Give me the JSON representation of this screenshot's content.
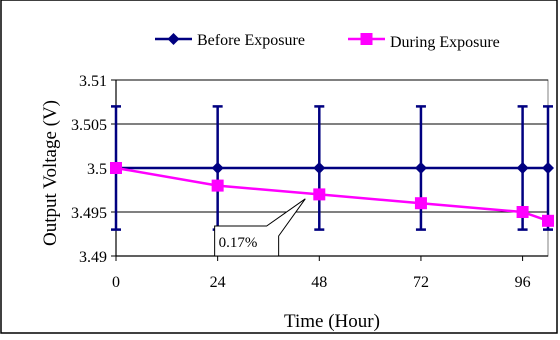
{
  "chart_data": {
    "type": "line",
    "title": "",
    "xlabel": "Time (Hour)",
    "ylabel": "Output Voltage (V)",
    "x": [
      0,
      24,
      48,
      72,
      96,
      102
    ],
    "xticks": [
      "0",
      "24",
      "48",
      "72",
      "96"
    ],
    "xtick_values": [
      0,
      24,
      48,
      72,
      96
    ],
    "yticks": [
      "3.49",
      "3.495",
      "3.5",
      "3.505",
      "3.51"
    ],
    "ytick_values": [
      3.49,
      3.495,
      3.5,
      3.505,
      3.51
    ],
    "xlim": [
      0,
      102
    ],
    "ylim": [
      3.49,
      3.51
    ],
    "grid": "horizontal",
    "legend": "top",
    "series": [
      {
        "name": "Before Exposure",
        "color": "#000080",
        "marker": "diamond",
        "values": [
          3.5,
          3.5,
          3.5,
          3.5,
          3.5,
          3.5
        ],
        "error": 0.007
      },
      {
        "name": "During Exposure",
        "color": "#ff00ff",
        "marker": "square",
        "values": [
          3.5,
          3.498,
          3.497,
          3.496,
          3.495,
          3.494
        ]
      }
    ],
    "annotation": {
      "text": "0.17%",
      "x": 24,
      "y": 3.4925
    }
  }
}
